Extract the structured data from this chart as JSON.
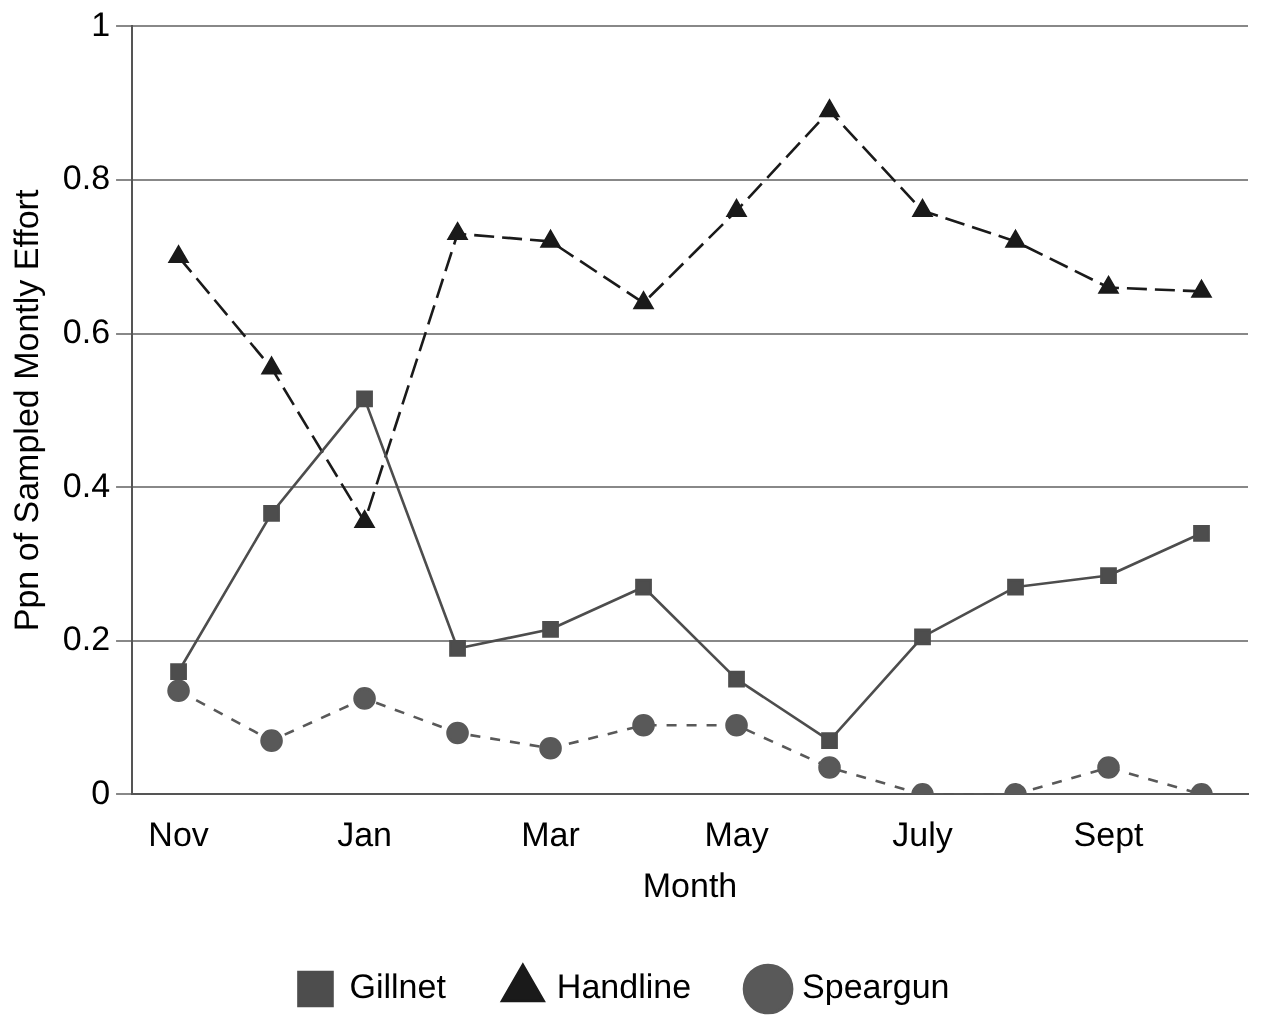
{
  "chart_data": {
    "type": "line",
    "xlabel": "Month",
    "ylabel": "Ppn of Sampled Montly Effort",
    "categories": [
      "Nov",
      null,
      "Jan",
      null,
      "Mar",
      null,
      "May",
      null,
      "July",
      null,
      "Sept",
      null
    ],
    "series": [
      {
        "name": "Gillnet",
        "color": "#4d4d4d",
        "marker": "square",
        "line_style": "solid",
        "values": [
          0.16,
          0.366,
          0.515,
          0.19,
          0.215,
          0.27,
          0.15,
          0.07,
          0.205,
          0.27,
          0.285,
          0.34
        ]
      },
      {
        "name": "Handline",
        "color": "#1a1a1a",
        "marker": "triangle",
        "line_style": "dashed",
        "values": [
          0.7,
          0.555,
          0.355,
          0.73,
          0.72,
          0.64,
          0.76,
          0.89,
          0.76,
          0.72,
          0.66,
          0.655
        ]
      },
      {
        "name": "Speargun",
        "color": "#595959",
        "marker": "circle",
        "line_style": "dotted",
        "values": [
          0.135,
          0.07,
          0.125,
          0.08,
          0.06,
          0.09,
          0.09,
          0.035,
          0,
          0,
          0.035,
          0
        ]
      }
    ],
    "ylim": [
      0,
      1
    ],
    "yticks": [
      0,
      0.2,
      0.4,
      0.6,
      0.8,
      1
    ],
    "grid": "y",
    "legend": "bottom"
  }
}
